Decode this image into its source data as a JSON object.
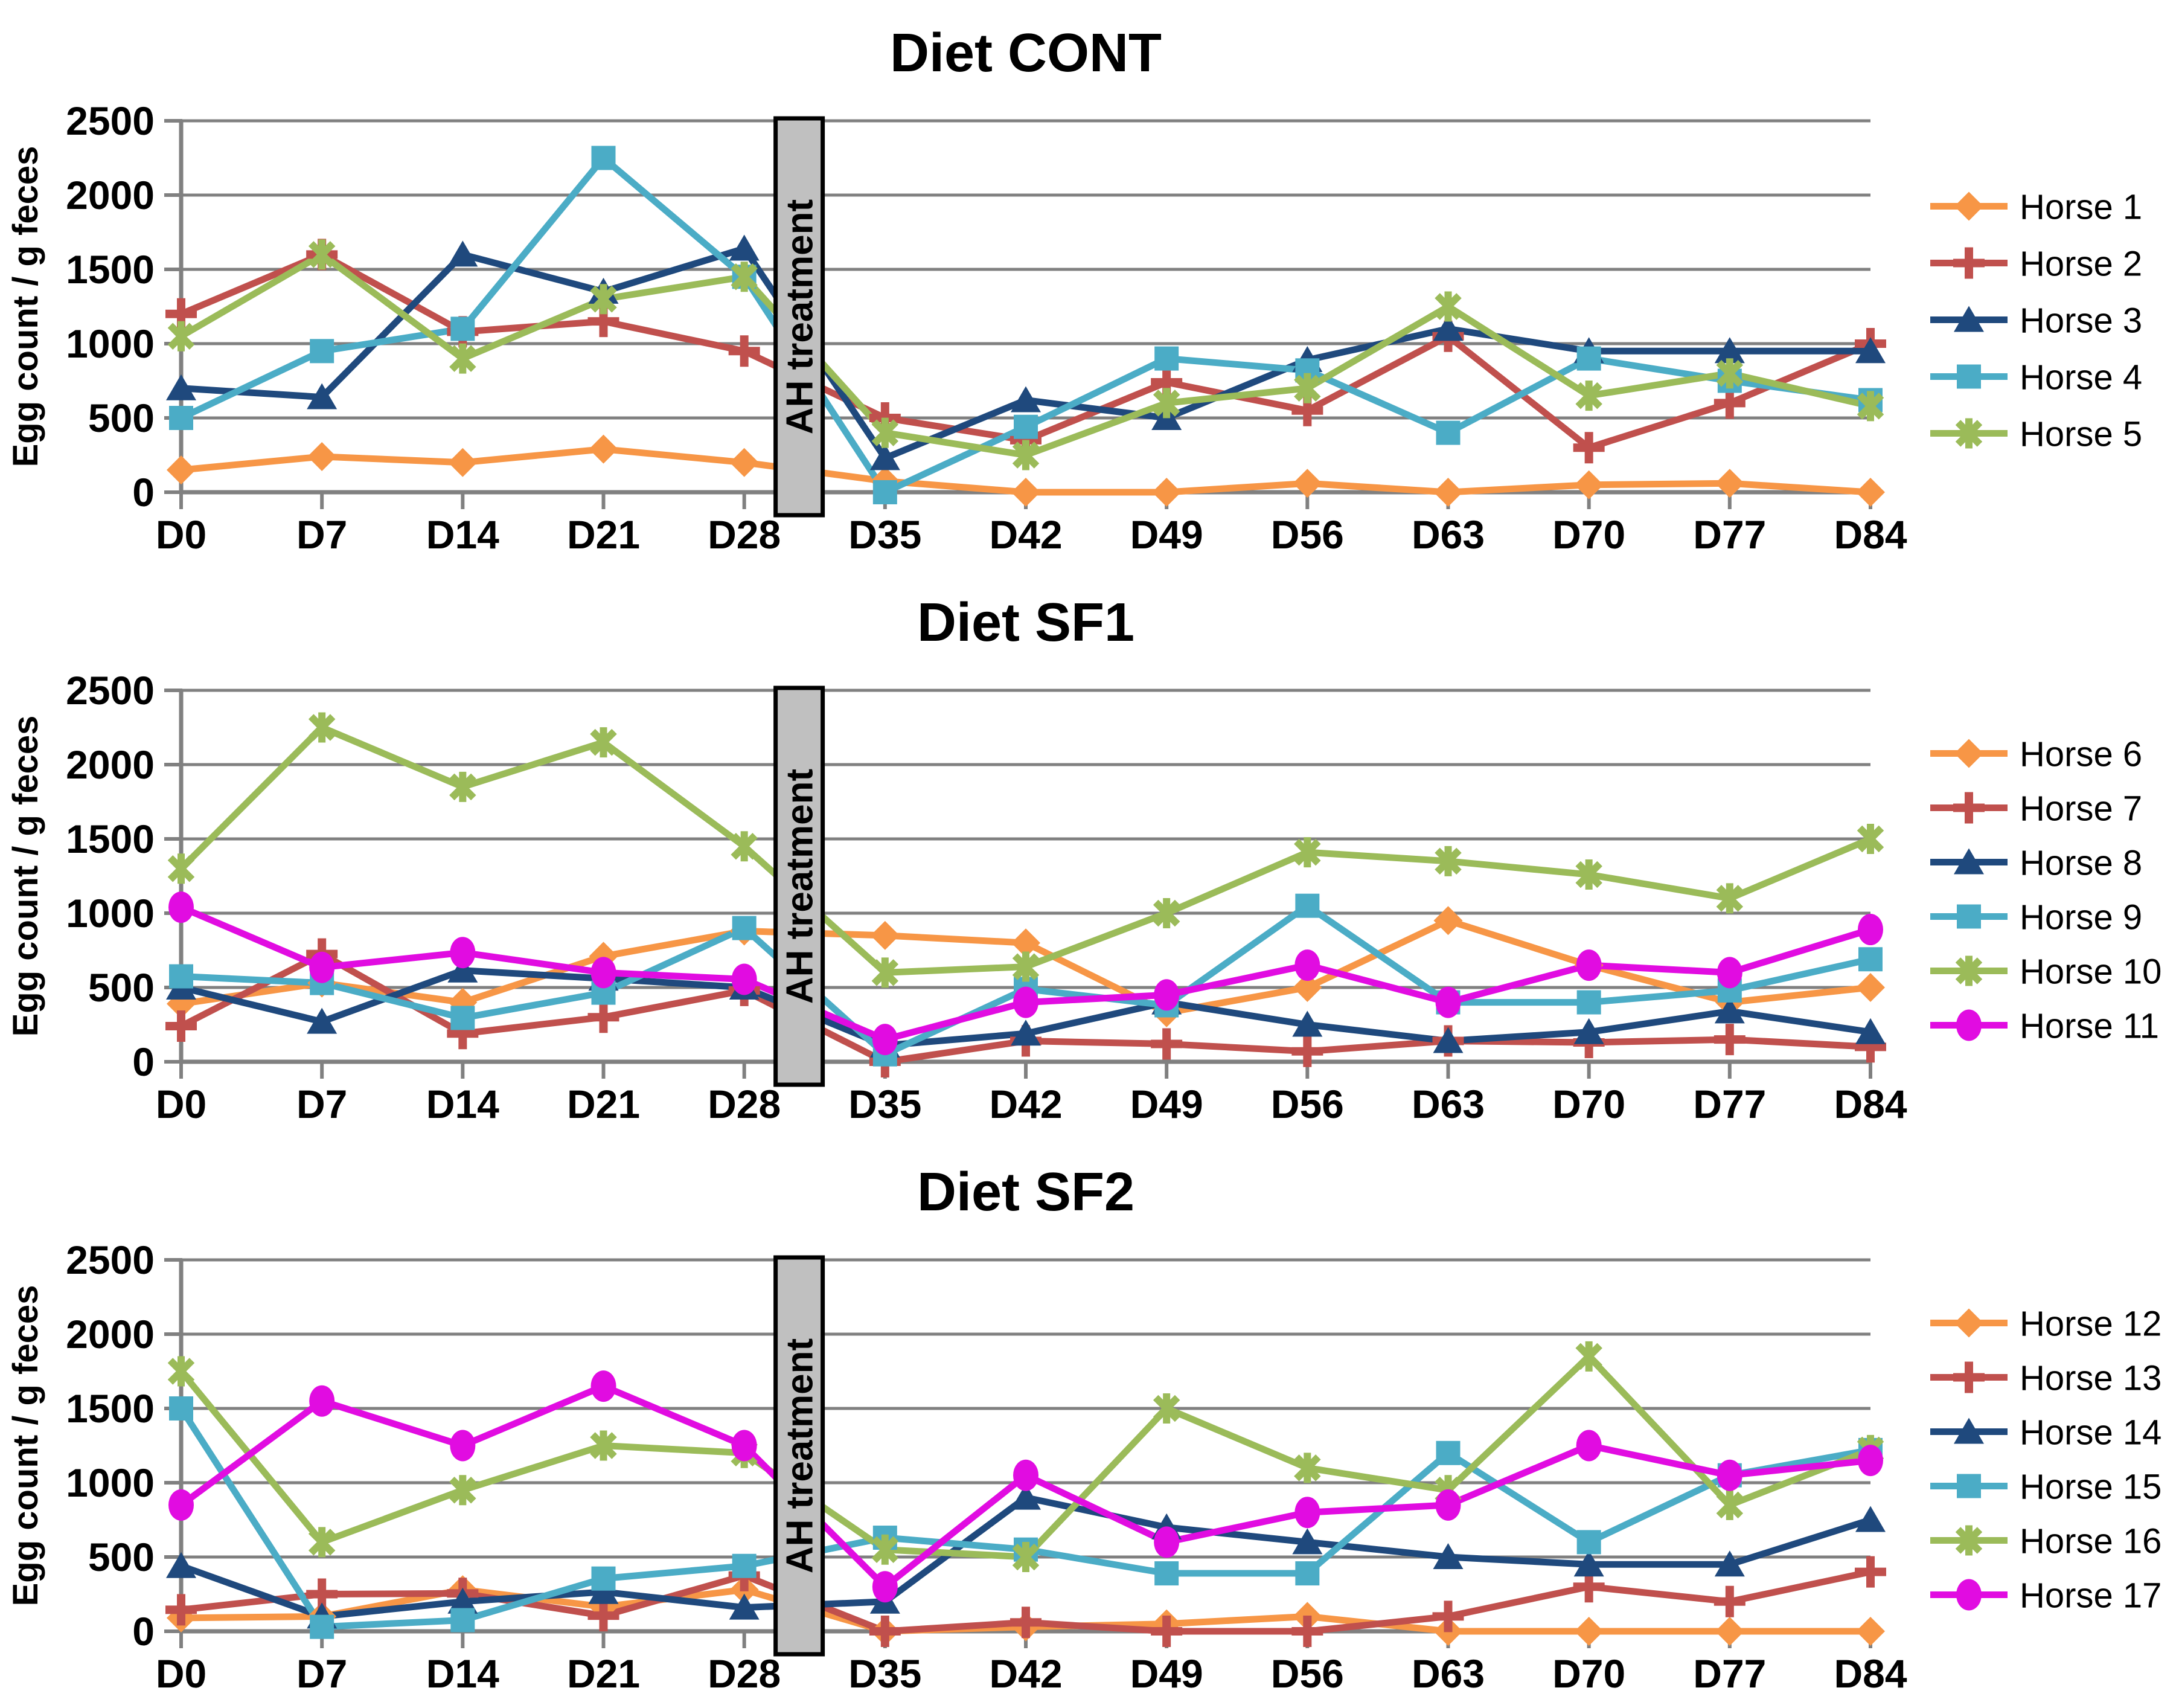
{
  "figure": {
    "y_axis_title": "Egg count / g feces",
    "annotation_label": "AH treatment",
    "colors": {
      "orange": "#F79646",
      "red": "#C0504D",
      "navy": "#1F497D",
      "cyan": "#4BACC6",
      "green": "#9BBB59",
      "magenta": "#E10CE1",
      "gridline": "#808080",
      "annotation_fill": "#C0C0C0",
      "annotation_border": "#000000"
    }
  },
  "chart_data": [
    {
      "type": "line",
      "title": "Diet CONT",
      "ylabel": "Egg count / g feces",
      "ylim": [
        0,
        2500
      ],
      "yticks": [
        0,
        500,
        1000,
        1500,
        2000,
        2500
      ],
      "grid": true,
      "legend_position": "right",
      "categories": [
        "D0",
        "D7",
        "D14",
        "D21",
        "D28",
        "D35",
        "D42",
        "D49",
        "D56",
        "D63",
        "D70",
        "D77",
        "D84"
      ],
      "annotation": {
        "label": "AH treatment",
        "between": [
          "D28",
          "D35"
        ]
      },
      "series": [
        {
          "name": "Horse 1",
          "color": "#F79646",
          "marker": "diamond",
          "values": [
            150,
            240,
            200,
            290,
            200,
            75,
            0,
            0,
            60,
            0,
            50,
            60,
            0
          ]
        },
        {
          "name": "Horse 2",
          "color": "#C0504D",
          "marker": "plus",
          "values": [
            1200,
            1600,
            1080,
            1150,
            950,
            500,
            350,
            740,
            550,
            1050,
            300,
            600,
            1000
          ]
        },
        {
          "name": "Horse 3",
          "color": "#1F497D",
          "marker": "triangle",
          "values": [
            700,
            640,
            1600,
            1350,
            1640,
            230,
            620,
            500,
            890,
            1100,
            950,
            950,
            950
          ]
        },
        {
          "name": "Horse 4",
          "color": "#4BACC6",
          "marker": "square",
          "values": [
            500,
            950,
            1100,
            2250,
            1450,
            0,
            440,
            900,
            820,
            400,
            900,
            750,
            620
          ]
        },
        {
          "name": "Horse 5",
          "color": "#9BBB59",
          "marker": "asterisk",
          "values": [
            1050,
            1600,
            900,
            1300,
            1450,
            400,
            250,
            600,
            700,
            1250,
            650,
            800,
            580
          ]
        }
      ]
    },
    {
      "type": "line",
      "title": "Diet SF1",
      "ylabel": "Egg count / g feces",
      "ylim": [
        0,
        2500
      ],
      "yticks": [
        0,
        500,
        1000,
        1500,
        2000,
        2500
      ],
      "grid": true,
      "legend_position": "right",
      "categories": [
        "D0",
        "D7",
        "D14",
        "D21",
        "D28",
        "D35",
        "D42",
        "D49",
        "D56",
        "D63",
        "D70",
        "D77",
        "D84"
      ],
      "annotation": {
        "label": "AH treatment",
        "between": [
          "D28",
          "D35"
        ]
      },
      "series": [
        {
          "name": "Horse 6",
          "color": "#F79646",
          "marker": "diamond",
          "values": [
            390,
            530,
            400,
            710,
            880,
            850,
            800,
            330,
            500,
            950,
            650,
            400,
            500
          ]
        },
        {
          "name": "Horse 7",
          "color": "#C0504D",
          "marker": "plus",
          "values": [
            240,
            725,
            190,
            300,
            480,
            0,
            140,
            120,
            70,
            140,
            130,
            150,
            100
          ]
        },
        {
          "name": "Horse 8",
          "color": "#1F497D",
          "marker": "triangle",
          "values": [
            500,
            270,
            615,
            560,
            500,
            110,
            190,
            400,
            250,
            140,
            200,
            340,
            200
          ]
        },
        {
          "name": "Horse 9",
          "color": "#4BACC6",
          "marker": "square",
          "values": [
            575,
            530,
            295,
            465,
            900,
            50,
            490,
            380,
            1050,
            400,
            400,
            480,
            690
          ]
        },
        {
          "name": "Horse 10",
          "color": "#9BBB59",
          "marker": "asterisk",
          "values": [
            1300,
            2250,
            1850,
            2150,
            1450,
            600,
            640,
            1000,
            1410,
            1350,
            1260,
            1100,
            1500
          ]
        },
        {
          "name": "Horse 11",
          "color": "#E10CE1",
          "marker": "circle",
          "values": [
            1040,
            635,
            735,
            600,
            555,
            150,
            400,
            450,
            650,
            400,
            650,
            600,
            890
          ]
        }
      ]
    },
    {
      "type": "line",
      "title": "Diet SF2",
      "ylabel": "Egg count / g feces",
      "ylim": [
        0,
        2500
      ],
      "yticks": [
        0,
        500,
        1000,
        1500,
        2000,
        2500
      ],
      "grid": true,
      "legend_position": "right",
      "categories": [
        "D0",
        "D7",
        "D14",
        "D21",
        "D28",
        "D35",
        "D42",
        "D49",
        "D56",
        "D63",
        "D70",
        "D77",
        "D84"
      ],
      "annotation": {
        "label": "AH treatment",
        "between": [
          "D28",
          "D35"
        ]
      },
      "series": [
        {
          "name": "Horse 12",
          "color": "#F79646",
          "marker": "diamond",
          "values": [
            90,
            100,
            280,
            165,
            280,
            0,
            30,
            50,
            100,
            0,
            0,
            0,
            0
          ]
        },
        {
          "name": "Horse 13",
          "color": "#C0504D",
          "marker": "plus",
          "values": [
            145,
            250,
            255,
            105,
            375,
            0,
            60,
            0,
            0,
            100,
            300,
            200,
            400
          ]
        },
        {
          "name": "Horse 14",
          "color": "#1F497D",
          "marker": "triangle",
          "values": [
            440,
            100,
            200,
            265,
            160,
            200,
            900,
            700,
            600,
            500,
            450,
            450,
            750
          ]
        },
        {
          "name": "Horse 15",
          "color": "#4BACC6",
          "marker": "square",
          "values": [
            1500,
            30,
            75,
            355,
            440,
            630,
            550,
            390,
            390,
            1200,
            600,
            1050,
            1220
          ]
        },
        {
          "name": "Horse 16",
          "color": "#9BBB59",
          "marker": "asterisk",
          "values": [
            1750,
            600,
            950,
            1250,
            1200,
            550,
            500,
            1500,
            1100,
            950,
            1850,
            850,
            1220
          ]
        },
        {
          "name": "Horse 17",
          "color": "#E10CE1",
          "marker": "circle",
          "values": [
            850,
            1550,
            1250,
            1650,
            1250,
            300,
            1050,
            600,
            800,
            850,
            1250,
            1050,
            1150
          ]
        }
      ]
    }
  ]
}
